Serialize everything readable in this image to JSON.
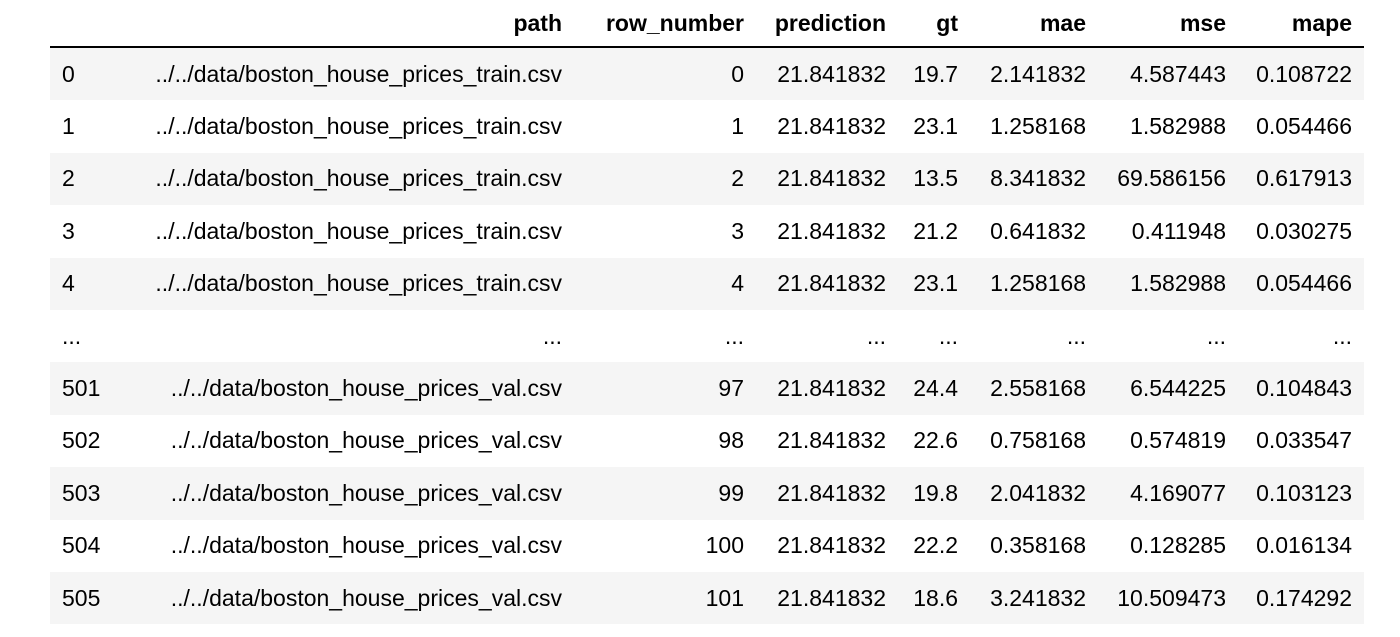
{
  "dataframe": {
    "columns": [
      "",
      "path",
      "row_number",
      "prediction",
      "gt",
      "mae",
      "mse",
      "mape"
    ],
    "rows": [
      [
        "0",
        "../../data/boston_house_prices_train.csv",
        "0",
        "21.841832",
        "19.7",
        "2.141832",
        "4.587443",
        "0.108722"
      ],
      [
        "1",
        "../../data/boston_house_prices_train.csv",
        "1",
        "21.841832",
        "23.1",
        "1.258168",
        "1.582988",
        "0.054466"
      ],
      [
        "2",
        "../../data/boston_house_prices_train.csv",
        "2",
        "21.841832",
        "13.5",
        "8.341832",
        "69.586156",
        "0.617913"
      ],
      [
        "3",
        "../../data/boston_house_prices_train.csv",
        "3",
        "21.841832",
        "21.2",
        "0.641832",
        "0.411948",
        "0.030275"
      ],
      [
        "4",
        "../../data/boston_house_prices_train.csv",
        "4",
        "21.841832",
        "23.1",
        "1.258168",
        "1.582988",
        "0.054466"
      ],
      [
        "...",
        "...",
        "...",
        "...",
        "...",
        "...",
        "...",
        "..."
      ],
      [
        "501",
        "../../data/boston_house_prices_val.csv",
        "97",
        "21.841832",
        "24.4",
        "2.558168",
        "6.544225",
        "0.104843"
      ],
      [
        "502",
        "../../data/boston_house_prices_val.csv",
        "98",
        "21.841832",
        "22.6",
        "0.758168",
        "0.574819",
        "0.033547"
      ],
      [
        "503",
        "../../data/boston_house_prices_val.csv",
        "99",
        "21.841832",
        "19.8",
        "2.041832",
        "4.169077",
        "0.103123"
      ],
      [
        "504",
        "../../data/boston_house_prices_val.csv",
        "100",
        "21.841832",
        "22.2",
        "0.358168",
        "0.128285",
        "0.016134"
      ],
      [
        "505",
        "../../data/boston_house_prices_val.csv",
        "101",
        "21.841832",
        "18.6",
        "3.241832",
        "10.509473",
        "0.174292"
      ]
    ]
  }
}
